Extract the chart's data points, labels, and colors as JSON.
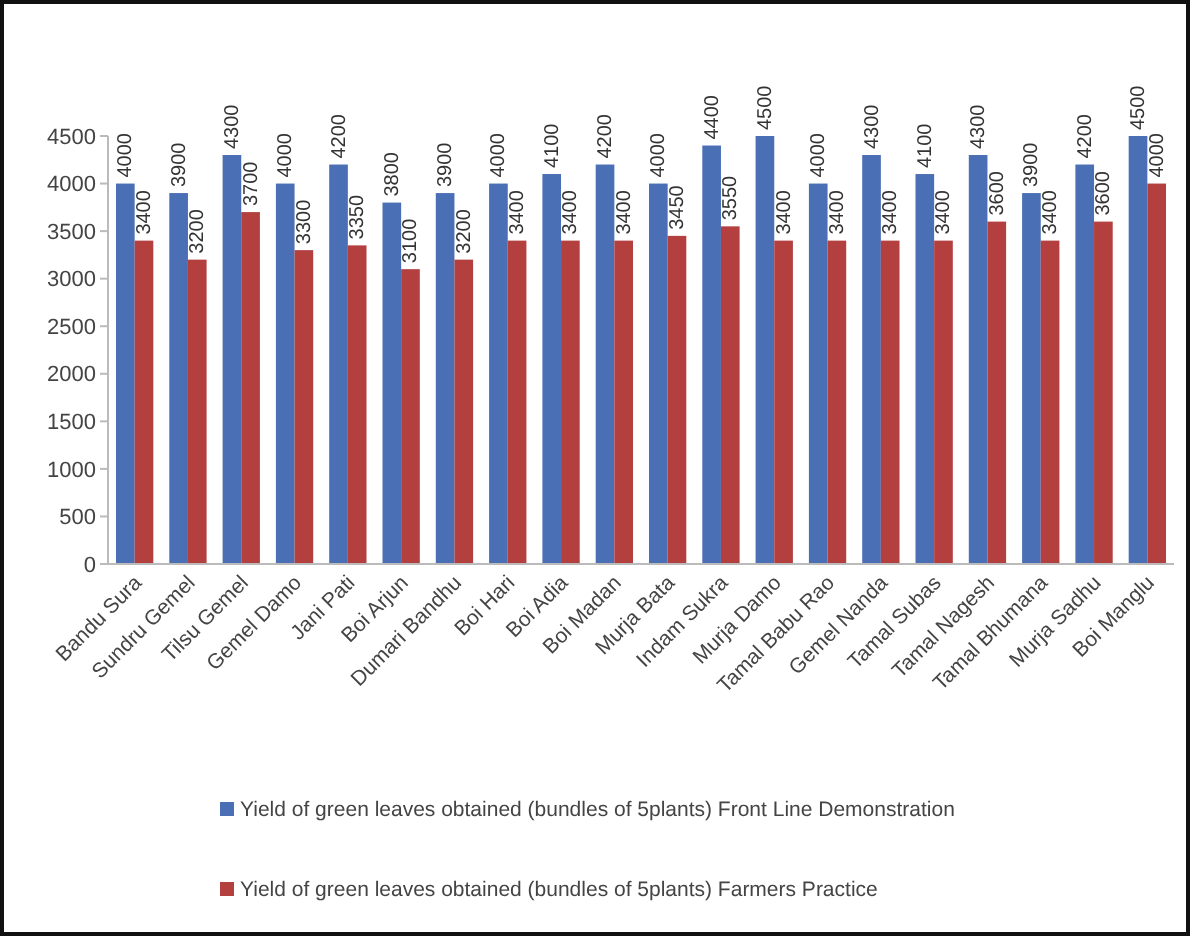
{
  "chart_data": {
    "type": "bar",
    "categories": [
      "Bandu Sura",
      "Sundru Gemel",
      "Tilsu Gemel",
      "Gemel Damo",
      "Jani Pati",
      "Boi Arjun",
      "Dumari Bandhu",
      "Boi Hari",
      "Boi Adia",
      "Boi Madan",
      "Murja Bata",
      "Indam Sukra",
      "Murja Damo",
      "Tamal Babu Rao",
      "Gemel Nanda",
      "Tamal Subas",
      "Tamal Nagesh",
      "Tamal Bhumana",
      "Murja Sadhu",
      "Boi Manglu"
    ],
    "series": [
      {
        "name": "Yield of green leaves obtained  (bundles of 5plants) Front Line Demonstration",
        "color": "#4a6fb5",
        "values": [
          4000,
          3900,
          4300,
          4000,
          4200,
          3800,
          3900,
          4000,
          4100,
          4200,
          4000,
          4400,
          4500,
          4000,
          4300,
          4100,
          4300,
          3900,
          4200,
          4500
        ]
      },
      {
        "name": "Yield of green leaves obtained  (bundles of 5plants) Farmers Practice",
        "color": "#b3403f",
        "values": [
          3400,
          3200,
          3700,
          3300,
          3350,
          3100,
          3200,
          3400,
          3400,
          3400,
          3450,
          3550,
          3400,
          3400,
          3400,
          3400,
          3600,
          3400,
          3600,
          4000
        ]
      }
    ],
    "ylim": [
      0,
      4500
    ],
    "yticks": [
      0,
      500,
      1000,
      1500,
      2000,
      2500,
      3000,
      3500,
      4000,
      4500
    ],
    "data_labels": true,
    "legend": "bottom",
    "grid": false
  }
}
